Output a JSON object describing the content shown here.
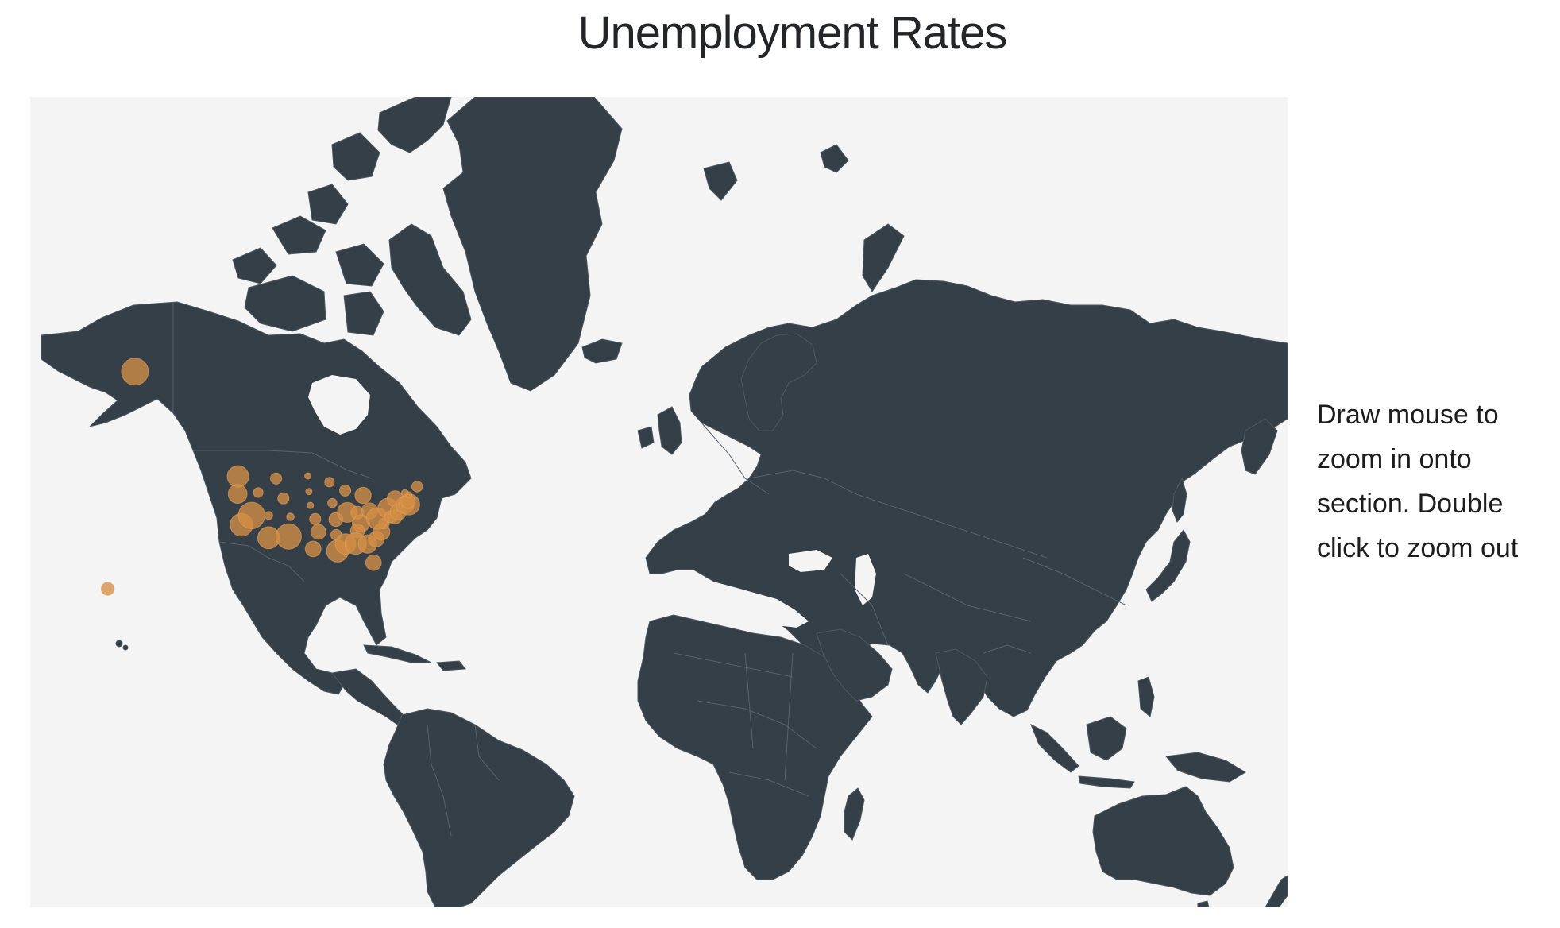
{
  "title": "Unemployment Rates",
  "instructions": "Draw mouse to zoom in onto section. Double click to zoom out",
  "colors": {
    "background": "#ffffff",
    "map_background": "#f4f4f4",
    "land": "#353f48",
    "borders": "#56626c",
    "bubble": "#d48e45"
  },
  "map": {
    "projection": "mercator",
    "markers": [
      {
        "place": "Alaska",
        "lon": -150.0,
        "lat": 64.0,
        "rate": 7.0
      },
      {
        "place": "Hawaii",
        "lon": -157.8,
        "lat": 21.3,
        "rate": 4.4
      },
      {
        "place": "Washington",
        "lon": -120.5,
        "lat": 47.4,
        "rate": 6.0
      },
      {
        "place": "Oregon",
        "lon": -120.6,
        "lat": 43.9,
        "rate": 5.5
      },
      {
        "place": "California",
        "lon": -119.5,
        "lat": 37.2,
        "rate": 6.2
      },
      {
        "place": "Nevada",
        "lon": -116.6,
        "lat": 39.3,
        "rate": 6.9
      },
      {
        "place": "Idaho",
        "lon": -114.7,
        "lat": 44.2,
        "rate": 3.8
      },
      {
        "place": "Montana",
        "lon": -109.6,
        "lat": 47.0,
        "rate": 4.1
      },
      {
        "place": "Wyoming",
        "lon": -107.5,
        "lat": 43.0,
        "rate": 4.1
      },
      {
        "place": "Utah",
        "lon": -111.7,
        "lat": 39.3,
        "rate": 3.5
      },
      {
        "place": "Arizona",
        "lon": -111.7,
        "lat": 34.2,
        "rate": 6.1
      },
      {
        "place": "New Mexico",
        "lon": -106.0,
        "lat": 34.5,
        "rate": 6.7
      },
      {
        "place": "Colorado",
        "lon": -105.5,
        "lat": 39.0,
        "rate": 3.4
      },
      {
        "place": "North Dakota",
        "lon": -100.5,
        "lat": 47.5,
        "rate": 2.9
      },
      {
        "place": "South Dakota",
        "lon": -100.2,
        "lat": 44.4,
        "rate": 2.8
      },
      {
        "place": "Nebraska",
        "lon": -99.8,
        "lat": 41.5,
        "rate": 3.2
      },
      {
        "place": "Kansas",
        "lon": -98.4,
        "lat": 38.5,
        "rate": 4.1
      },
      {
        "place": "Oklahoma",
        "lon": -97.5,
        "lat": 35.6,
        "rate": 4.8
      },
      {
        "place": "Texas",
        "lon": -99.0,
        "lat": 31.5,
        "rate": 4.9
      },
      {
        "place": "Minnesota",
        "lon": -94.3,
        "lat": 46.3,
        "rate": 3.8
      },
      {
        "place": "Iowa",
        "lon": -93.5,
        "lat": 42.0,
        "rate": 3.7
      },
      {
        "place": "Missouri",
        "lon": -92.5,
        "lat": 38.4,
        "rate": 4.6
      },
      {
        "place": "Arkansas",
        "lon": -92.4,
        "lat": 34.9,
        "rate": 4.0
      },
      {
        "place": "Louisiana",
        "lon": -92.0,
        "lat": 31.0,
        "rate": 6.1
      },
      {
        "place": "Wisconsin",
        "lon": -89.8,
        "lat": 44.6,
        "rate": 4.1
      },
      {
        "place": "Illinois",
        "lon": -89.2,
        "lat": 40.0,
        "rate": 5.7
      },
      {
        "place": "Mississippi",
        "lon": -89.7,
        "lat": 32.7,
        "rate": 5.8
      },
      {
        "place": "Michigan",
        "lon": -84.7,
        "lat": 43.6,
        "rate": 5.0
      },
      {
        "place": "Indiana",
        "lon": -86.3,
        "lat": 39.9,
        "rate": 4.4
      },
      {
        "place": "Kentucky",
        "lon": -85.3,
        "lat": 37.5,
        "rate": 5.2
      },
      {
        "place": "Tennessee",
        "lon": -86.3,
        "lat": 35.8,
        "rate": 4.6
      },
      {
        "place": "Alabama",
        "lon": -86.8,
        "lat": 32.8,
        "rate": 6.0
      },
      {
        "place": "Ohio",
        "lon": -82.8,
        "lat": 40.3,
        "rate": 5.0
      },
      {
        "place": "Georgia",
        "lon": -83.4,
        "lat": 32.7,
        "rate": 5.4
      },
      {
        "place": "Florida",
        "lon": -81.7,
        "lat": 28.1,
        "rate": 4.9
      },
      {
        "place": "South Carolina",
        "lon": -80.9,
        "lat": 33.9,
        "rate": 4.9
      },
      {
        "place": "North Carolina",
        "lon": -79.4,
        "lat": 35.6,
        "rate": 5.1
      },
      {
        "place": "Virginia",
        "lon": -78.7,
        "lat": 37.5,
        "rate": 4.0
      },
      {
        "place": "West Virginia",
        "lon": -80.6,
        "lat": 38.6,
        "rate": 6.0
      },
      {
        "place": "Pennsylvania",
        "lon": -77.6,
        "lat": 40.9,
        "rate": 5.7
      },
      {
        "place": "New York",
        "lon": -75.5,
        "lat": 42.9,
        "rate": 5.0
      },
      {
        "place": "Maryland",
        "lon": -76.7,
        "lat": 39.0,
        "rate": 4.3
      },
      {
        "place": "Delaware",
        "lon": -75.5,
        "lat": 39.0,
        "rate": 4.6
      },
      {
        "place": "New Jersey",
        "lon": -74.6,
        "lat": 40.1,
        "rate": 5.0
      },
      {
        "place": "Connecticut",
        "lon": -72.7,
        "lat": 41.6,
        "rate": 5.3
      },
      {
        "place": "Rhode Island",
        "lon": -71.5,
        "lat": 41.7,
        "rate": 5.9
      },
      {
        "place": "Massachusetts",
        "lon": -71.8,
        "lat": 42.3,
        "rate": 4.6
      },
      {
        "place": "Vermont",
        "lon": -72.7,
        "lat": 44.1,
        "rate": 3.3
      },
      {
        "place": "New Hampshire",
        "lon": -71.6,
        "lat": 43.7,
        "rate": 2.9
      },
      {
        "place": "Maine",
        "lon": -69.2,
        "lat": 45.4,
        "rate": 4.0
      }
    ]
  }
}
